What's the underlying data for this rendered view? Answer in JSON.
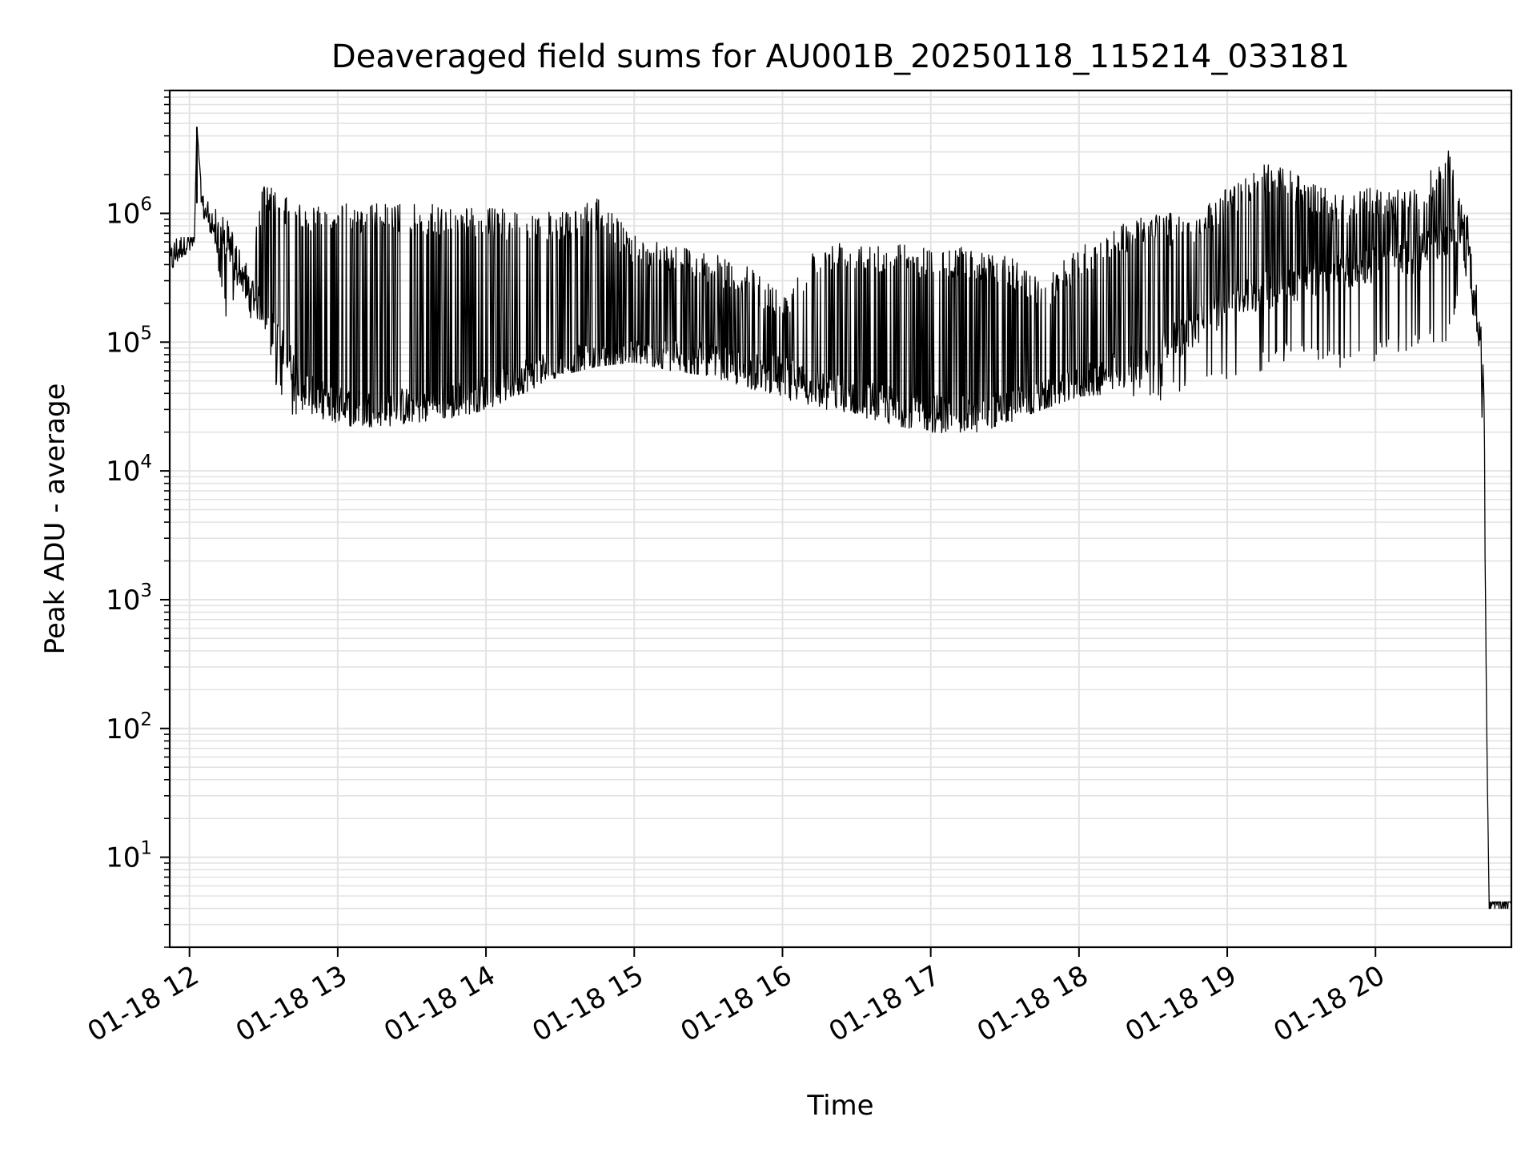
{
  "chart_data": {
    "type": "line",
    "title": "Deaveraged field sums for AU001B_20250118_115214_033181",
    "xlabel": "Time",
    "ylabel": "Peak ADU - average",
    "yscale": "log",
    "xlim": [
      "01-18 11:52",
      "01-18 20:55"
    ],
    "ylim": [
      2,
      9000000
    ],
    "grid": "major-and-minor",
    "line_color": "#000000",
    "x_ticks": [
      {
        "label": "01-18 12",
        "value": "01-18 12:00"
      },
      {
        "label": "01-18 13",
        "value": "01-18 13:00"
      },
      {
        "label": "01-18 14",
        "value": "01-18 14:00"
      },
      {
        "label": "01-18 15",
        "value": "01-18 15:00"
      },
      {
        "label": "01-18 16",
        "value": "01-18 16:00"
      },
      {
        "label": "01-18 17",
        "value": "01-18 17:00"
      },
      {
        "label": "01-18 18",
        "value": "01-18 18:00"
      },
      {
        "label": "01-18 19",
        "value": "01-18 19:00"
      },
      {
        "label": "01-18 20",
        "value": "01-18 20:00"
      }
    ],
    "y_ticks": [
      {
        "base": "10",
        "exp": "1",
        "value": 10
      },
      {
        "base": "10",
        "exp": "2",
        "value": 100
      },
      {
        "base": "10",
        "exp": "3",
        "value": 1000
      },
      {
        "base": "10",
        "exp": "4",
        "value": 10000
      },
      {
        "base": "10",
        "exp": "5",
        "value": 100000
      },
      {
        "base": "10",
        "exp": "6",
        "value": 1000000
      }
    ],
    "series": [
      {
        "x": [
          "01-18 11:52",
          "01-18 11:56",
          "01-18 12:00",
          "01-18 12:02",
          "01-18 12:03",
          "01-18 12:05",
          "01-18 12:10",
          "01-18 12:15",
          "01-18 12:20",
          "01-18 12:25",
          "01-18 12:30",
          "01-18 12:35",
          "01-18 12:40",
          "01-18 12:45",
          "01-18 12:50",
          "01-18 13:00",
          "01-18 13:15",
          "01-18 13:30",
          "01-18 13:45",
          "01-18 14:00",
          "01-18 14:15",
          "01-18 14:30",
          "01-18 14:45",
          "01-18 15:00",
          "01-18 15:15",
          "01-18 15:30",
          "01-18 15:45",
          "01-18 16:00",
          "01-18 16:15",
          "01-18 16:30",
          "01-18 16:45",
          "01-18 17:00",
          "01-18 17:15",
          "01-18 17:30",
          "01-18 17:45",
          "01-18 18:00",
          "01-18 18:15",
          "01-18 18:30",
          "01-18 18:45",
          "01-18 19:00",
          "01-18 19:15",
          "01-18 19:30",
          "01-18 19:45",
          "01-18 20:00",
          "01-18 20:15",
          "01-18 20:30",
          "01-18 20:36",
          "01-18 20:38",
          "01-18 20:40",
          "01-18 20:42",
          "01-18 20:44",
          "01-18 20:45",
          "01-18 20:46",
          "01-18 20:55"
        ],
        "baseline": [
          400000,
          550000,
          600000,
          600000,
          4700000,
          1200000,
          800000,
          650000,
          400000,
          250000,
          160000,
          110000,
          75000,
          50000,
          38000,
          32000,
          30000,
          32000,
          35000,
          40000,
          55000,
          65000,
          70000,
          75000,
          75000,
          70000,
          60000,
          55000,
          45000,
          38000,
          32000,
          28000,
          27000,
          30000,
          35000,
          45000,
          60000,
          80000,
          120000,
          200000,
          250000,
          300000,
          350000,
          400000,
          450000,
          700000,
          800000,
          500000,
          300000,
          150000,
          30000,
          100,
          4,
          4
        ],
        "upper": [
          600000,
          650000,
          650000,
          650000,
          4700000,
          1400000,
          1100000,
          900000,
          600000,
          500000,
          1800000,
          1500000,
          1300000,
          1250000,
          1200000,
          1200000,
          1200000,
          1200000,
          1150000,
          1100000,
          1100000,
          1000000,
          1300000,
          700000,
          600000,
          500000,
          400000,
          250000,
          600000,
          650000,
          600000,
          550000,
          550000,
          500000,
          300000,
          550000,
          800000,
          1100000,
          900000,
          1600000,
          2500000,
          2000000,
          1400000,
          1600000,
          1500000,
          3200000,
          1300000,
          900000,
          400000,
          300000,
          50000,
          100,
          4.5,
          4.5
        ],
        "lower": [
          350000,
          450000,
          500000,
          500000,
          4700000,
          1000000,
          600000,
          130000,
          300000,
          150000,
          150000,
          40000,
          28000,
          26000,
          25000,
          22000,
          22000,
          23000,
          25000,
          30000,
          40000,
          55000,
          65000,
          70000,
          60000,
          55000,
          45000,
          35000,
          30000,
          25000,
          22000,
          20000,
          19000,
          23000,
          30000,
          38000,
          40000,
          32000,
          45000,
          50000,
          60000,
          80000,
          60000,
          70000,
          90000,
          100000,
          400000,
          200000,
          150000,
          80000,
          10000,
          100,
          4,
          4
        ]
      }
    ]
  }
}
